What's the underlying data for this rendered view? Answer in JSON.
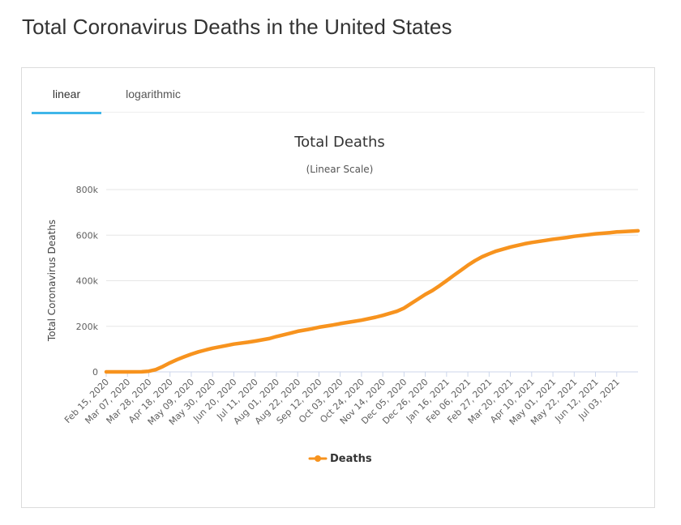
{
  "page": {
    "title": "Total Coronavirus Deaths in the United States"
  },
  "tabs": [
    {
      "label": "linear",
      "active": true
    },
    {
      "label": "logarithmic",
      "active": false
    }
  ],
  "colors": {
    "series": "#f7931e",
    "tab_underline": "#3fb6e9",
    "grid": "#e6e6e6"
  },
  "chart_data": {
    "type": "line",
    "title": "Total Deaths",
    "subtitle": "(Linear Scale)",
    "ylabel": "Total Coronavirus Deaths",
    "xlabel": "",
    "ylim": [
      0,
      800000
    ],
    "yticks": [
      0,
      200000,
      400000,
      600000,
      800000
    ],
    "ytick_labels": [
      "0",
      "200k",
      "400k",
      "600k",
      "800k"
    ],
    "x_start": "2020-02-15",
    "x_end": "2021-07-24",
    "xtick_dates": [
      "2020-02-15",
      "2020-03-07",
      "2020-03-28",
      "2020-04-18",
      "2020-05-09",
      "2020-05-30",
      "2020-06-20",
      "2020-07-11",
      "2020-08-01",
      "2020-08-22",
      "2020-09-12",
      "2020-10-03",
      "2020-10-24",
      "2020-11-14",
      "2020-12-05",
      "2020-12-26",
      "2021-01-16",
      "2021-02-06",
      "2021-02-27",
      "2021-03-20",
      "2021-04-10",
      "2021-05-01",
      "2021-05-22",
      "2021-06-12",
      "2021-07-03"
    ],
    "xtick_labels": [
      "Feb 15, 2020",
      "Mar 07, 2020",
      "Mar 28, 2020",
      "Apr 18, 2020",
      "May 09, 2020",
      "May 30, 2020",
      "Jun 20, 2020",
      "Jul 11, 2020",
      "Aug 01, 2020",
      "Aug 22, 2020",
      "Sep 12, 2020",
      "Oct 03, 2020",
      "Oct 24, 2020",
      "Nov 14, 2020",
      "Dec 05, 2020",
      "Dec 26, 2020",
      "Jan 16, 2021",
      "Feb 06, 2021",
      "Feb 27, 2021",
      "Mar 20, 2021",
      "Apr 10, 2021",
      "May 01, 2021",
      "May 22, 2021",
      "Jun 12, 2021",
      "Jul 03, 2021"
    ],
    "legend": {
      "position": "bottom-center",
      "entries": [
        "Deaths"
      ]
    },
    "grid": true,
    "series": [
      {
        "name": "Deaths",
        "dates": [
          "2020-02-15",
          "2020-03-07",
          "2020-03-21",
          "2020-03-28",
          "2020-04-04",
          "2020-04-11",
          "2020-04-18",
          "2020-04-25",
          "2020-05-02",
          "2020-05-09",
          "2020-05-16",
          "2020-05-23",
          "2020-05-30",
          "2020-06-13",
          "2020-06-20",
          "2020-07-04",
          "2020-07-11",
          "2020-07-25",
          "2020-08-01",
          "2020-08-15",
          "2020-08-22",
          "2020-09-05",
          "2020-09-12",
          "2020-09-26",
          "2020-10-03",
          "2020-10-17",
          "2020-10-24",
          "2020-11-07",
          "2020-11-14",
          "2020-11-28",
          "2020-12-05",
          "2020-12-12",
          "2020-12-19",
          "2020-12-26",
          "2021-01-02",
          "2021-01-09",
          "2021-01-16",
          "2021-01-23",
          "2021-01-30",
          "2021-02-06",
          "2021-02-13",
          "2021-02-20",
          "2021-02-27",
          "2021-03-06",
          "2021-03-20",
          "2021-04-03",
          "2021-04-10",
          "2021-04-24",
          "2021-05-01",
          "2021-05-15",
          "2021-05-22",
          "2021-06-05",
          "2021-06-12",
          "2021-06-26",
          "2021-07-03",
          "2021-07-24"
        ],
        "values": [
          0,
          0,
          500,
          3000,
          10000,
          24000,
          40000,
          54000,
          66000,
          78000,
          88000,
          96000,
          104000,
          116000,
          122000,
          130000,
          135000,
          146000,
          155000,
          170000,
          178000,
          189000,
          196000,
          206000,
          212000,
          222000,
          227000,
          240000,
          248000,
          266000,
          280000,
          300000,
          320000,
          340000,
          357000,
          378000,
          400000,
          423000,
          445000,
          468000,
          488000,
          505000,
          518000,
          530000,
          548000,
          562000,
          568000,
          577000,
          582000,
          590000,
          595000,
          602000,
          606000,
          611000,
          614000,
          619000
        ]
      }
    ]
  }
}
